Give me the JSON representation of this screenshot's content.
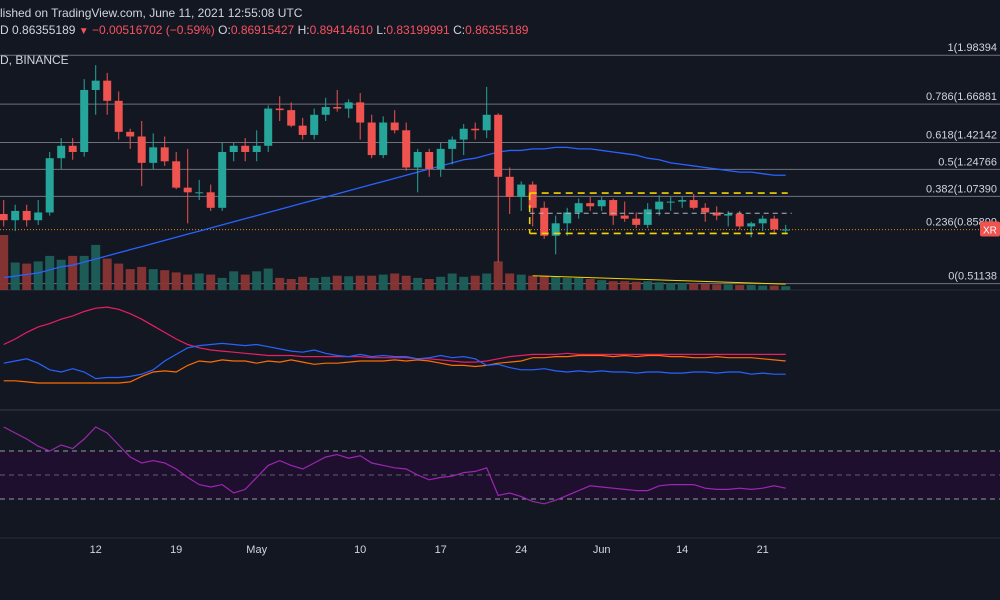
{
  "header": {
    "published_line": "lished on TradingView.com, June 11, 2021 12:55:08 UTC",
    "ticker_suffix": "D",
    "last_price": "0.86355189",
    "down_arrow": "▼",
    "change": "−0.00516702",
    "change_pct": "(−0.59%)",
    "o_label": "O:",
    "o_value": "0.86915427",
    "h_label": "H:",
    "h_value": "0.89414610",
    "l_label": "L:",
    "l_value": "0.83199991",
    "c_label": "C:",
    "c_value": "0.86355189",
    "exchange": "D, BINANCE"
  },
  "colors": {
    "background": "#131722",
    "up": "#26a69a",
    "down": "#ef5350",
    "ma": "#2962ff",
    "fib_line": "#787b86",
    "channel": "#f5d400",
    "trendline": "#f5d400",
    "dmi_plus": "#2962ff",
    "dmi_minus": "#ff6d00",
    "adx": "#e91e63",
    "rsi": "#9c27b0"
  },
  "fib_levels": [
    {
      "label": "1(1.98394",
      "value": 1.98394
    },
    {
      "label": "0.786(1.66881",
      "value": 1.66881
    },
    {
      "label": "0.618(1.42142",
      "value": 1.42142
    },
    {
      "label": "0.5(1.24766",
      "value": 1.24766
    },
    {
      "label": "0.382(1.07390",
      "value": 1.0739
    },
    {
      "label": "0.236(0.85899",
      "value": 0.85899
    },
    {
      "label": "0(0.51138",
      "value": 0.51138
    }
  ],
  "price_badge": "XR",
  "x_axis": {
    "labels": [
      "12",
      "19",
      "May",
      "10",
      "17",
      "24",
      "Jun",
      "14",
      "21"
    ],
    "indices": [
      8,
      15,
      22,
      31,
      38,
      45,
      52,
      59,
      66
    ]
  },
  "chart_data": {
    "type": "candlestick",
    "interval": "1D",
    "title": "",
    "ylim": [
      0.47,
      2.05
    ],
    "ohlc": [
      [
        0.96,
        1.05,
        0.88,
        0.92
      ],
      [
        0.92,
        1.02,
        0.85,
        0.98
      ],
      [
        0.98,
        1.02,
        0.88,
        0.92
      ],
      [
        0.92,
        1.05,
        0.89,
        0.97
      ],
      [
        0.97,
        1.36,
        0.95,
        1.32
      ],
      [
        1.32,
        1.45,
        1.25,
        1.4
      ],
      [
        1.4,
        1.45,
        1.31,
        1.36
      ],
      [
        1.36,
        1.83,
        1.33,
        1.76
      ],
      [
        1.76,
        1.92,
        1.6,
        1.82
      ],
      [
        1.82,
        1.87,
        1.6,
        1.69
      ],
      [
        1.69,
        1.75,
        1.44,
        1.49
      ],
      [
        1.49,
        1.51,
        1.38,
        1.46
      ],
      [
        1.46,
        1.56,
        1.14,
        1.29
      ],
      [
        1.29,
        1.48,
        1.25,
        1.39
      ],
      [
        1.39,
        1.46,
        1.27,
        1.3
      ],
      [
        1.3,
        1.36,
        1.12,
        1.13
      ],
      [
        1.13,
        1.38,
        0.9,
        1.1
      ],
      [
        1.1,
        1.18,
        1.05,
        1.1
      ],
      [
        1.1,
        1.15,
        0.98,
        1.0
      ],
      [
        1.0,
        1.42,
        0.98,
        1.36
      ],
      [
        1.36,
        1.42,
        1.3,
        1.4
      ],
      [
        1.4,
        1.45,
        1.3,
        1.36
      ],
      [
        1.36,
        1.5,
        1.3,
        1.4
      ],
      [
        1.4,
        1.66,
        1.36,
        1.64
      ],
      [
        1.64,
        1.72,
        1.56,
        1.63
      ],
      [
        1.63,
        1.68,
        1.52,
        1.53
      ],
      [
        1.53,
        1.58,
        1.44,
        1.47
      ],
      [
        1.47,
        1.64,
        1.44,
        1.6
      ],
      [
        1.6,
        1.71,
        1.56,
        1.65
      ],
      [
        1.65,
        1.76,
        1.62,
        1.64
      ],
      [
        1.64,
        1.7,
        1.58,
        1.68
      ],
      [
        1.68,
        1.74,
        1.44,
        1.55
      ],
      [
        1.55,
        1.6,
        1.32,
        1.34
      ],
      [
        1.34,
        1.59,
        1.32,
        1.55
      ],
      [
        1.55,
        1.63,
        1.48,
        1.5
      ],
      [
        1.5,
        1.55,
        1.24,
        1.26
      ],
      [
        1.26,
        1.38,
        1.1,
        1.36
      ],
      [
        1.36,
        1.38,
        1.2,
        1.25
      ],
      [
        1.25,
        1.42,
        1.2,
        1.38
      ],
      [
        1.38,
        1.46,
        1.28,
        1.44
      ],
      [
        1.44,
        1.54,
        1.34,
        1.51
      ],
      [
        1.51,
        1.55,
        1.44,
        1.5
      ],
      [
        1.5,
        1.78,
        1.45,
        1.6
      ],
      [
        1.6,
        1.61,
        0.65,
        1.2
      ],
      [
        1.2,
        1.26,
        0.96,
        1.07
      ],
      [
        1.07,
        1.17,
        0.98,
        1.15
      ],
      [
        1.15,
        1.17,
        0.88,
        1.0
      ],
      [
        1.0,
        1.04,
        0.8,
        0.82
      ],
      [
        0.82,
        0.95,
        0.7,
        0.9
      ],
      [
        0.9,
        1.0,
        0.82,
        0.97
      ],
      [
        0.97,
        1.06,
        0.93,
        1.03
      ],
      [
        1.03,
        1.07,
        0.98,
        1.01
      ],
      [
        1.01,
        1.07,
        0.98,
        1.05
      ],
      [
        1.05,
        1.06,
        0.89,
        0.95
      ],
      [
        0.95,
        1.04,
        0.91,
        0.93
      ],
      [
        0.93,
        0.97,
        0.87,
        0.89
      ],
      [
        0.89,
        1.03,
        0.87,
        0.99
      ],
      [
        0.99,
        1.08,
        0.95,
        1.04
      ],
      [
        1.04,
        1.07,
        0.98,
        1.04
      ],
      [
        1.04,
        1.07,
        1.0,
        1.05
      ],
      [
        1.05,
        1.09,
        0.99,
        1.0
      ],
      [
        1.0,
        1.03,
        0.91,
        0.97
      ],
      [
        0.97,
        1.01,
        0.92,
        0.95
      ],
      [
        0.95,
        0.98,
        0.88,
        0.96
      ],
      [
        0.96,
        0.98,
        0.86,
        0.88
      ],
      [
        0.88,
        0.91,
        0.81,
        0.9
      ],
      [
        0.9,
        0.95,
        0.85,
        0.93
      ],
      [
        0.93,
        0.95,
        0.84,
        0.86
      ],
      [
        0.86,
        0.89,
        0.83,
        0.86
      ]
    ],
    "volume": [
      1.0,
      0.5,
      0.48,
      0.52,
      0.62,
      0.55,
      0.62,
      0.62,
      0.82,
      0.57,
      0.48,
      0.38,
      0.42,
      0.38,
      0.36,
      0.32,
      0.28,
      0.3,
      0.28,
      0.22,
      0.34,
      0.28,
      0.34,
      0.39,
      0.22,
      0.2,
      0.24,
      0.22,
      0.24,
      0.26,
      0.25,
      0.26,
      0.26,
      0.28,
      0.3,
      0.26,
      0.22,
      0.2,
      0.24,
      0.3,
      0.24,
      0.26,
      0.3,
      0.52,
      0.3,
      0.28,
      0.26,
      0.26,
      0.24,
      0.22,
      0.22,
      0.2,
      0.18,
      0.16,
      0.16,
      0.15,
      0.16,
      0.14,
      0.12,
      0.12,
      0.12,
      0.11,
      0.1,
      0.1,
      0.09,
      0.09,
      0.08,
      0.08,
      0.07
    ],
    "dmi": {
      "plus_di": [
        38,
        40,
        42,
        38,
        32,
        30,
        33,
        30,
        24,
        25,
        25,
        26,
        28,
        32,
        40,
        46,
        52,
        54,
        55,
        56,
        55,
        54,
        55,
        53,
        51,
        49,
        48,
        50,
        47,
        45,
        44,
        46,
        44,
        45,
        44,
        44,
        42,
        43,
        45,
        43,
        44,
        42,
        36,
        37,
        34,
        32,
        32,
        33,
        31,
        30,
        31,
        30,
        31,
        30,
        30,
        29,
        30,
        30,
        29,
        29,
        30,
        30,
        29,
        30,
        30,
        28,
        29,
        28,
        28
      ],
      "minus_di": [
        22,
        22,
        21,
        20,
        20,
        20,
        20,
        20,
        20,
        20,
        20,
        21,
        26,
        30,
        31,
        30,
        36,
        40,
        39,
        41,
        40,
        40,
        38,
        40,
        39,
        41,
        39,
        37,
        38,
        38,
        39,
        40,
        40,
        40,
        41,
        40,
        41,
        40,
        38,
        36,
        36,
        35,
        36,
        38,
        39,
        40,
        43,
        43,
        44,
        44,
        45,
        45,
        45,
        44,
        45,
        44,
        45,
        45,
        44,
        44,
        43,
        43,
        44,
        43,
        43,
        43,
        42,
        41,
        40
      ],
      "adx": [
        55,
        60,
        66,
        71,
        74,
        78,
        81,
        85,
        88,
        89,
        87,
        83,
        78,
        72,
        66,
        60,
        55,
        52,
        50,
        49,
        48,
        47,
        46,
        45,
        45,
        45,
        44,
        44,
        44,
        44,
        44,
        44,
        43,
        43,
        43,
        43,
        42,
        42,
        41,
        40,
        39,
        39,
        40,
        42,
        44,
        45,
        46,
        46,
        46,
        47,
        46,
        46,
        46,
        46,
        46,
        46,
        46,
        46,
        46,
        46,
        46,
        46,
        46,
        46,
        46,
        46,
        46,
        46,
        46
      ]
    },
    "rsi": {
      "values": [
        90,
        85,
        80,
        74,
        70,
        75,
        72,
        80,
        90,
        85,
        75,
        65,
        60,
        62,
        60,
        55,
        48,
        42,
        40,
        42,
        35,
        38,
        48,
        58,
        62,
        58,
        55,
        60,
        65,
        67,
        64,
        66,
        60,
        58,
        56,
        55,
        50,
        46,
        48,
        49,
        52,
        53,
        56,
        33,
        35,
        32,
        28,
        26,
        29,
        33,
        37,
        41,
        40,
        39,
        38,
        37,
        37,
        41,
        42,
        42,
        42,
        39,
        38,
        38,
        39,
        38,
        39,
        41,
        39
      ],
      "upper_band": 70,
      "lower_band": 30
    },
    "moving_average": [
      0.55,
      0.56,
      0.57,
      0.58,
      0.6,
      0.62,
      0.63,
      0.65,
      0.67,
      0.69,
      0.71,
      0.73,
      0.75,
      0.77,
      0.79,
      0.81,
      0.83,
      0.85,
      0.87,
      0.89,
      0.91,
      0.93,
      0.95,
      0.97,
      0.99,
      1.01,
      1.03,
      1.05,
      1.07,
      1.09,
      1.11,
      1.13,
      1.15,
      1.17,
      1.19,
      1.21,
      1.23,
      1.25,
      1.27,
      1.29,
      1.31,
      1.32,
      1.34,
      1.36,
      1.37,
      1.37,
      1.38,
      1.38,
      1.39,
      1.39,
      1.38,
      1.38,
      1.37,
      1.36,
      1.35,
      1.34,
      1.32,
      1.31,
      1.29,
      1.28,
      1.27,
      1.26,
      1.25,
      1.24,
      1.23,
      1.23,
      1.22,
      1.21,
      1.21
    ],
    "channel": {
      "upper": 1.095,
      "lower": 0.835,
      "mid": 0.965,
      "from_index": 46,
      "to_index": 68
    },
    "volume_trendline": {
      "from_index": 46,
      "to_index": 68
    }
  }
}
